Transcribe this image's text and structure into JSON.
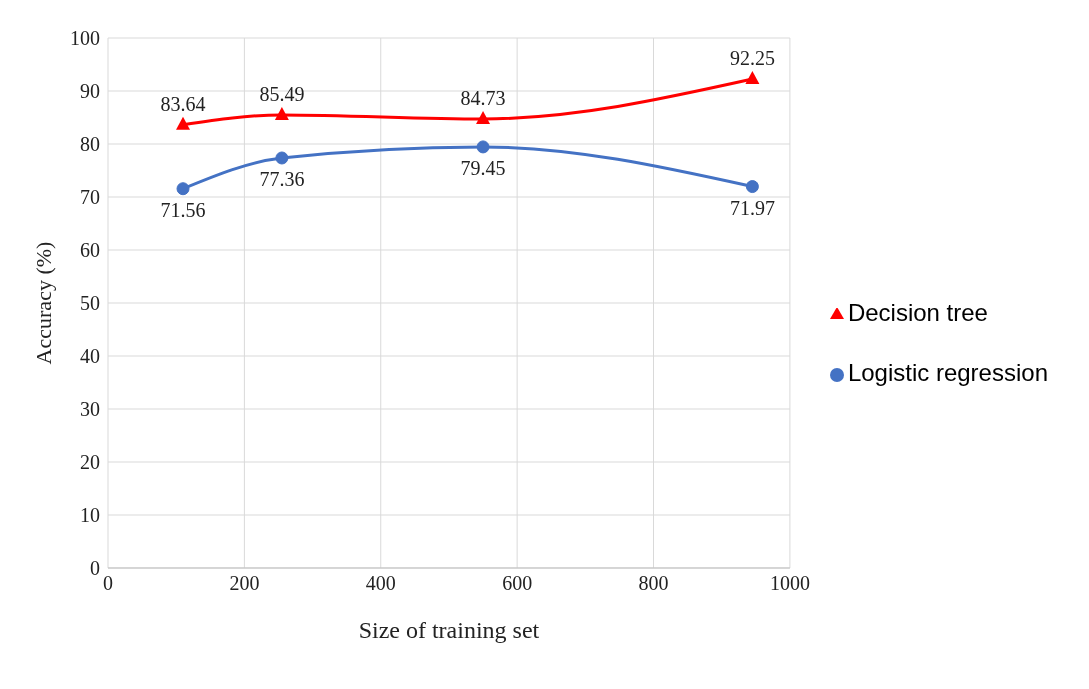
{
  "chart_data": {
    "type": "line",
    "xlabel": "Size of training set",
    "ylabel": "Accuracy (%)",
    "x": [
      110,
      255,
      550,
      945
    ],
    "series": [
      {
        "name": "Logistic regression",
        "color": "#4472c4",
        "values": [
          71.56,
          77.36,
          79.45,
          71.97
        ],
        "marker": "circle"
      },
      {
        "name": "Decision tree",
        "color": "#ff0000",
        "values": [
          83.64,
          85.49,
          84.73,
          92.25
        ],
        "marker": "triangle"
      }
    ],
    "xlim": [
      0,
      1000
    ],
    "xticks": [
      0,
      200,
      400,
      600,
      800,
      1000
    ],
    "ylim": [
      0,
      100
    ],
    "yticks": [
      0,
      10,
      20,
      30,
      40,
      50,
      60,
      70,
      80,
      90,
      100
    ],
    "grid": true,
    "legend": "right",
    "data_labels": true
  }
}
